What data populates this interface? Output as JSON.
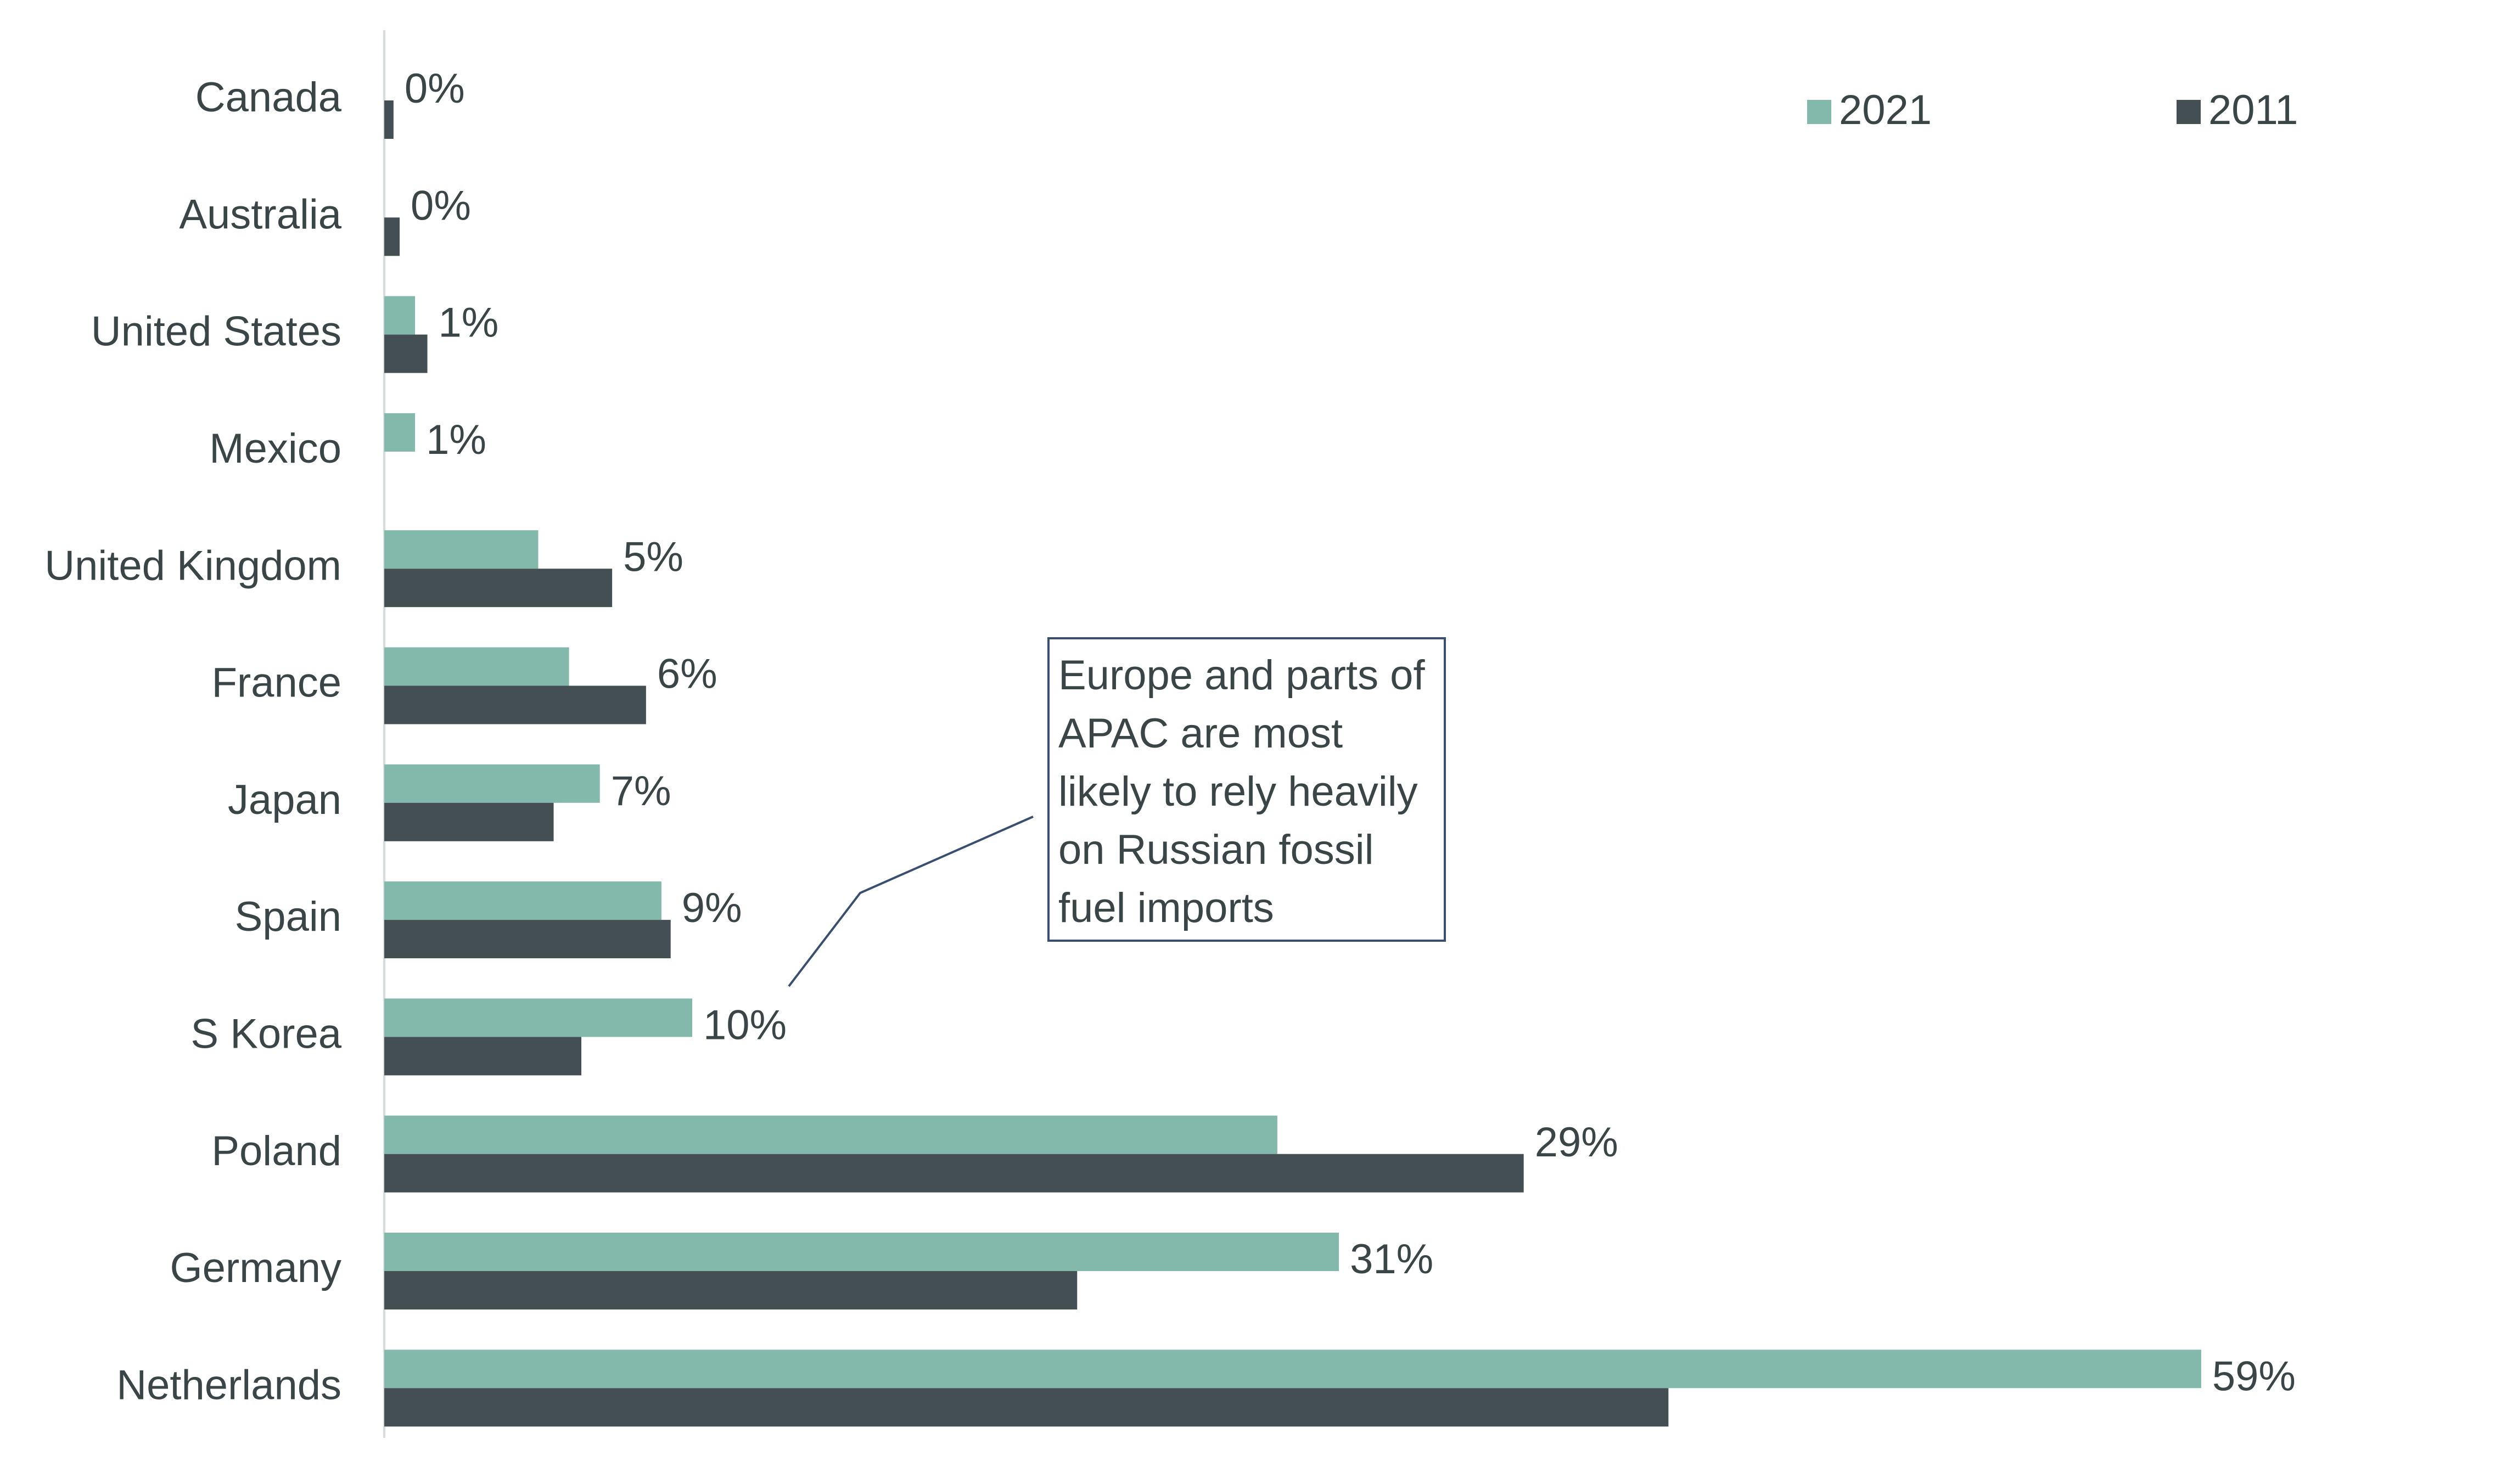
{
  "chart_data": {
    "type": "bar",
    "orientation": "horizontal",
    "categories": [
      "Canada",
      "Australia",
      "United States",
      "Mexico",
      "United Kingdom",
      "France",
      "Japan",
      "Spain",
      "S Korea",
      "Poland",
      "Germany",
      "Netherlands"
    ],
    "series": [
      {
        "name": "2021",
        "color": "#82b9ab",
        "values": [
          0,
          0,
          1,
          1,
          5,
          6,
          7,
          9,
          10,
          29,
          31,
          59
        ]
      },
      {
        "name": "2011",
        "color": "#434f52",
        "values": [
          0.3,
          0.5,
          1.4,
          0,
          7.4,
          8.5,
          5.5,
          9.3,
          6.4,
          37,
          22.5,
          41.7
        ]
      }
    ],
    "data_labels": [
      "0%",
      "0%",
      "1%",
      "1%",
      "5%",
      "6%",
      "7%",
      "9%",
      "10%",
      "29%",
      "31%",
      "59%"
    ],
    "xlim": [
      0,
      62
    ],
    "grid": false,
    "legend_position": "top-right",
    "annotation": {
      "lines": [
        "Europe and parts of",
        "APAC are most",
        "likely to rely heavily",
        "on Russian fossil",
        "fuel imports"
      ],
      "points_to": "S Korea"
    }
  }
}
